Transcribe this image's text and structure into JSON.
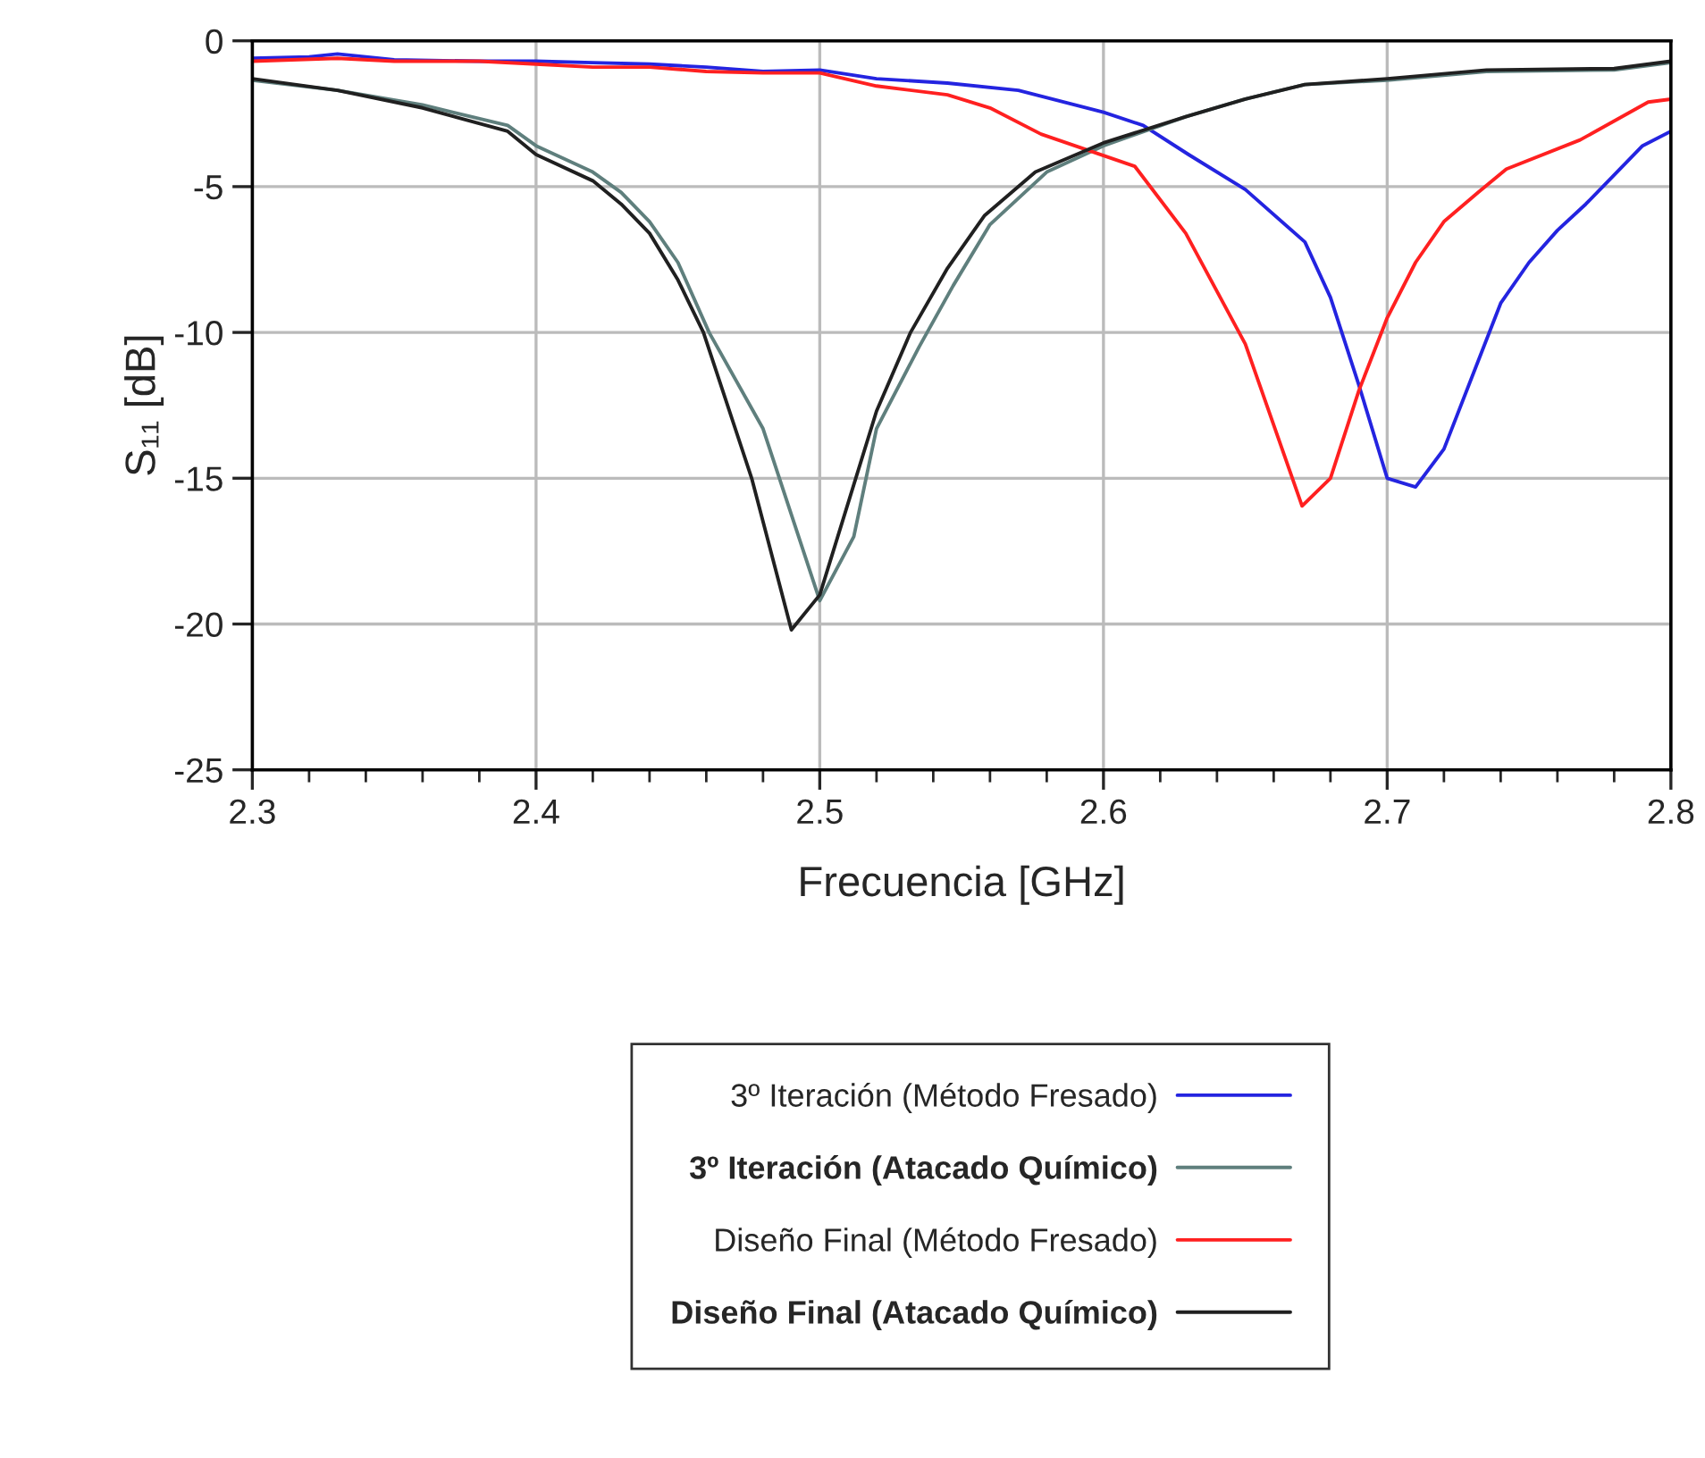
{
  "chart_data": {
    "type": "line",
    "xlabel": "Frecuencia [GHz]",
    "ylabel": "S₁₁ [dB]",
    "xlim": [
      2.3,
      2.8
    ],
    "xticks": [
      2.3,
      2.4,
      2.5,
      2.6,
      2.7,
      2.8
    ],
    "ylim": [
      -25,
      0
    ],
    "yticks": [
      -25,
      -20,
      -15,
      -10,
      -5,
      0
    ],
    "grid": true,
    "legend": "bottom",
    "marker": "none",
    "line_style": "solid",
    "series": [
      {
        "name": "3º Iteración (Método Fresado)",
        "color": "#2424e0",
        "x": [
          2.3,
          2.32,
          2.33,
          2.35,
          2.38,
          2.4,
          2.42,
          2.44,
          2.46,
          2.48,
          2.5,
          2.52,
          2.545,
          2.57,
          2.6,
          2.614,
          2.63,
          2.65,
          2.671,
          2.68,
          2.69,
          2.7,
          2.71,
          2.72,
          2.73,
          2.74,
          2.75,
          2.76,
          2.77,
          2.78,
          2.79,
          2.8
        ],
        "values": [
          -0.6,
          -0.55,
          -0.45,
          -0.65,
          -0.7,
          -0.7,
          -0.75,
          -0.8,
          -0.9,
          -1.05,
          -1.0,
          -1.3,
          -1.45,
          -1.7,
          -2.45,
          -2.9,
          -3.9,
          -5.1,
          -6.9,
          -8.8,
          -11.8,
          -15.0,
          -15.3,
          -14.0,
          -11.5,
          -9.0,
          -7.6,
          -6.5,
          -5.6,
          -4.6,
          -3.6,
          -3.1
        ]
      },
      {
        "name": "3º Iteración (Atacado Químico)",
        "color": "#5f7f7d",
        "x": [
          2.3,
          2.33,
          2.36,
          2.39,
          2.4,
          2.42,
          2.43,
          2.44,
          2.45,
          2.461,
          2.48,
          2.5,
          2.512,
          2.52,
          2.535,
          2.547,
          2.56,
          2.58,
          2.6,
          2.629,
          2.65,
          2.671,
          2.7,
          2.735,
          2.78,
          2.8
        ],
        "values": [
          -1.35,
          -1.7,
          -2.2,
          -2.9,
          -3.6,
          -4.5,
          -5.2,
          -6.2,
          -7.6,
          -10.0,
          -13.3,
          -19.2,
          -17.0,
          -13.3,
          -10.5,
          -8.4,
          -6.3,
          -4.5,
          -3.6,
          -2.6,
          -2.0,
          -1.5,
          -1.35,
          -1.05,
          -1.0,
          -0.75
        ]
      },
      {
        "name": "Diseño Final (Método Fresado)",
        "color": "#ff2020",
        "x": [
          2.3,
          2.33,
          2.35,
          2.38,
          2.4,
          2.42,
          2.44,
          2.46,
          2.48,
          2.5,
          2.52,
          2.545,
          2.56,
          2.578,
          2.611,
          2.629,
          2.65,
          2.67,
          2.68,
          2.69,
          2.7,
          2.71,
          2.72,
          2.732,
          2.742,
          2.768,
          2.792,
          2.8
        ],
        "values": [
          -0.7,
          -0.6,
          -0.7,
          -0.7,
          -0.8,
          -0.9,
          -0.9,
          -1.05,
          -1.1,
          -1.1,
          -1.55,
          -1.85,
          -2.3,
          -3.2,
          -4.3,
          -6.6,
          -10.4,
          -15.95,
          -15.0,
          -12.0,
          -9.5,
          -7.6,
          -6.2,
          -5.2,
          -4.4,
          -3.4,
          -2.1,
          -2.0
        ]
      },
      {
        "name": "Diseño Final (Atacado Químico)",
        "color": "#202020",
        "x": [
          2.3,
          2.33,
          2.36,
          2.39,
          2.4,
          2.42,
          2.43,
          2.44,
          2.45,
          2.459,
          2.476,
          2.49,
          2.5,
          2.52,
          2.532,
          2.545,
          2.558,
          2.576,
          2.6,
          2.629,
          2.65,
          2.671,
          2.7,
          2.735,
          2.78,
          2.8
        ],
        "values": [
          -1.3,
          -1.7,
          -2.3,
          -3.1,
          -3.9,
          -4.8,
          -5.6,
          -6.6,
          -8.2,
          -10.0,
          -15.0,
          -20.2,
          -19.0,
          -12.7,
          -10.0,
          -7.8,
          -6.0,
          -4.5,
          -3.5,
          -2.6,
          -2.0,
          -1.5,
          -1.3,
          -1.0,
          -0.95,
          -0.7
        ]
      }
    ]
  }
}
